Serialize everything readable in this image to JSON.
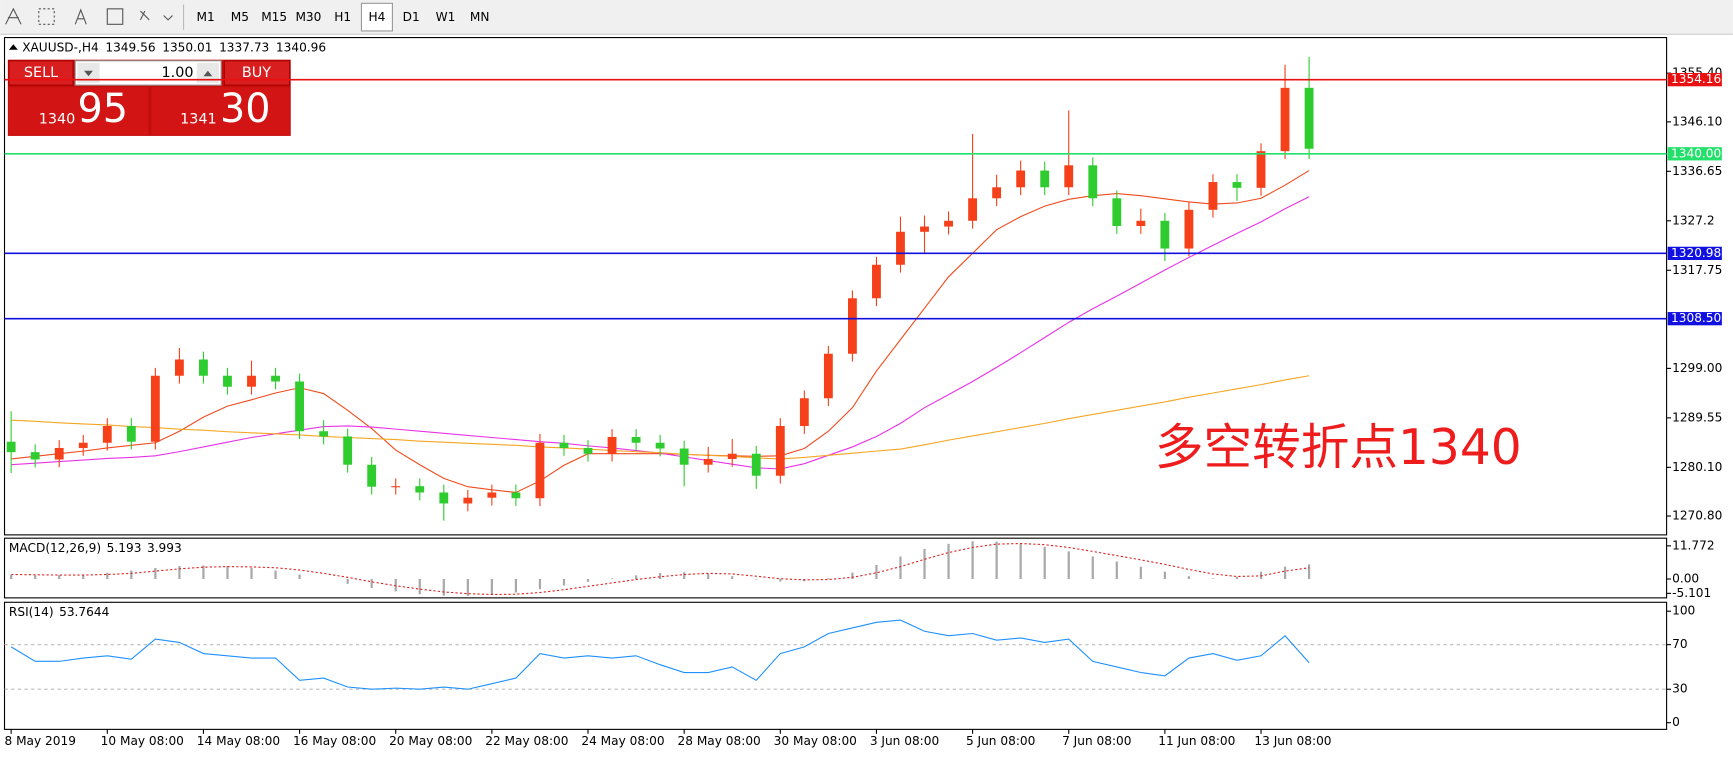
{
  "toolbar": {
    "timeframes": [
      "M1",
      "M5",
      "M15",
      "M30",
      "H1",
      "H4",
      "D1",
      "W1",
      "MN"
    ],
    "active": "H4"
  },
  "trade_panel": {
    "sell": "SELL",
    "buy": "BUY",
    "lot": "1.00",
    "bid": [
      "1340",
      "95"
    ],
    "ask": [
      "1341",
      "30"
    ]
  },
  "chart_data": [
    {
      "type": "candlestick",
      "title": "XAUUSD-,H4",
      "ohlc_display": [
        1349.56,
        1350.01,
        1337.73,
        1340.96
      ],
      "annotation": "多空转折点1340",
      "categories": [
        "8 May 2019",
        null,
        null,
        null,
        "10 May 08:00",
        null,
        null,
        null,
        "14 May 08:00",
        null,
        null,
        null,
        "16 May 08:00",
        null,
        null,
        null,
        "20 May 08:00",
        null,
        null,
        null,
        "22 May 08:00",
        null,
        null,
        null,
        "24 May 08:00",
        null,
        null,
        null,
        "28 May 08:00",
        null,
        null,
        null,
        "30 May 08:00",
        null,
        null,
        null,
        "3 Jun 08:00",
        null,
        null,
        null,
        "5 Jun 08:00",
        null,
        null,
        null,
        "7 Jun 08:00",
        null,
        null,
        null,
        "11 Jun 08:00",
        null,
        null,
        null,
        "13 Jun 08:00",
        null,
        null
      ],
      "open": [
        1285.0,
        1283.0,
        1281.6,
        1283.8,
        1284.8,
        1288.0,
        1285.0,
        1297.6,
        1300.7,
        1297.6,
        1295.5,
        1297.6,
        1296.5,
        1287.0,
        1286.0,
        1280.6,
        1276.4,
        1276.5,
        1275.3,
        1273.2,
        1274.3,
        1275.3,
        1274.2,
        1284.8,
        1283.8,
        1282.7,
        1285.9,
        1284.8,
        1283.7,
        1280.6,
        1281.7,
        1282.7,
        1278.5,
        1288.0,
        1293.3,
        1301.8,
        1312.4,
        1318.8,
        1325.1,
        1326.1,
        1327.2,
        1331.5,
        1333.6,
        1336.8,
        1333.6,
        1337.8,
        1331.5,
        1326.2,
        1327.2,
        1321.9,
        1329.3,
        1334.6,
        1333.5,
        1340.5,
        1352.6
      ],
      "high": [
        1290.8,
        1284.5,
        1285.3,
        1286.3,
        1289.5,
        1289.5,
        1299.1,
        1302.9,
        1302.2,
        1299.1,
        1300.5,
        1299.1,
        1298.0,
        1289.1,
        1287.5,
        1282.1,
        1278.0,
        1278.0,
        1276.8,
        1275.8,
        1276.8,
        1276.8,
        1286.5,
        1286.3,
        1285.3,
        1287.4,
        1287.4,
        1286.3,
        1285.2,
        1284.0,
        1285.5,
        1284.2,
        1289.5,
        1294.8,
        1303.3,
        1313.9,
        1320.3,
        1328.0,
        1328.2,
        1329.0,
        1343.8,
        1336.0,
        1338.7,
        1338.5,
        1348.3,
        1339.3,
        1333.0,
        1329.5,
        1328.7,
        1330.8,
        1336.1,
        1336.1,
        1342.0,
        1357.0,
        1358.5
      ],
      "low": [
        1279.0,
        1280.1,
        1280.1,
        1282.3,
        1283.3,
        1283.5,
        1283.5,
        1296.1,
        1296.1,
        1294.0,
        1294.0,
        1295.0,
        1285.5,
        1284.5,
        1279.1,
        1274.9,
        1274.9,
        1273.8,
        1269.9,
        1271.7,
        1272.8,
        1272.7,
        1272.7,
        1282.3,
        1281.2,
        1281.2,
        1283.3,
        1282.2,
        1276.5,
        1279.1,
        1280.2,
        1276.0,
        1277.0,
        1286.5,
        1291.8,
        1300.3,
        1310.9,
        1317.3,
        1321.0,
        1324.6,
        1325.7,
        1330.0,
        1332.1,
        1332.1,
        1332.1,
        1330.0,
        1324.7,
        1324.7,
        1319.5,
        1320.4,
        1327.8,
        1331.0,
        1332.0,
        1339.0,
        1339.0
      ],
      "close": [
        1283.0,
        1281.6,
        1283.8,
        1284.8,
        1288.0,
        1285.0,
        1297.6,
        1300.7,
        1297.6,
        1295.5,
        1297.6,
        1296.5,
        1287.0,
        1286.0,
        1280.6,
        1276.4,
        1276.5,
        1275.3,
        1273.2,
        1274.3,
        1275.3,
        1274.2,
        1284.8,
        1283.8,
        1282.7,
        1285.9,
        1284.8,
        1283.7,
        1280.6,
        1281.7,
        1282.7,
        1278.5,
        1288.0,
        1293.3,
        1301.8,
        1312.4,
        1318.8,
        1325.1,
        1326.1,
        1327.2,
        1331.5,
        1333.6,
        1336.8,
        1333.6,
        1337.8,
        1331.5,
        1326.2,
        1327.2,
        1321.9,
        1329.3,
        1334.6,
        1333.5,
        1340.5,
        1352.6,
        1340.96
      ],
      "up_color": "#f5401a",
      "down_color": "#2fcc2f",
      "series": [
        {
          "color": "#f04b1e",
          "values": [
            1281.7,
            1282.2,
            1282.7,
            1283.2,
            1283.8,
            1284.3,
            1284.8,
            1287.0,
            1289.7,
            1291.8,
            1293.0,
            1294.3,
            1295.3,
            1294.2,
            1291.0,
            1287.5,
            1283.4,
            1280.6,
            1278.0,
            1276.4,
            1275.8,
            1275.3,
            1277.5,
            1280.5,
            1282.7,
            1282.7,
            1282.7,
            1282.7,
            1282.6,
            1282.4,
            1282.3,
            1282.2,
            1282.3,
            1283.7,
            1287.0,
            1291.5,
            1298.5,
            1304.5,
            1310.5,
            1316.5,
            1321.0,
            1325.5,
            1328.0,
            1330.0,
            1331.3,
            1332.0,
            1332.4,
            1332.0,
            1331.4,
            1330.8,
            1330.4,
            1330.6,
            1331.5,
            1334.0,
            1336.8
          ]
        },
        {
          "color": "#e832e8",
          "values": [
            1280.6,
            1280.9,
            1281.2,
            1281.5,
            1281.8,
            1282.0,
            1282.3,
            1283.1,
            1284.0,
            1284.9,
            1285.8,
            1286.5,
            1287.2,
            1287.9,
            1288.0,
            1287.8,
            1287.4,
            1287.0,
            1286.6,
            1286.2,
            1285.8,
            1285.4,
            1285.0,
            1284.7,
            1284.2,
            1283.8,
            1283.3,
            1282.8,
            1282.1,
            1281.4,
            1280.7,
            1280.0,
            1279.8,
            1280.8,
            1282.4,
            1284.0,
            1286.0,
            1288.5,
            1291.5,
            1294.0,
            1296.5,
            1299.2,
            1302.0,
            1304.9,
            1307.8,
            1310.4,
            1312.8,
            1315.3,
            1317.8,
            1320.2,
            1322.5,
            1324.8,
            1327.0,
            1329.5,
            1331.8
          ]
        },
        {
          "color": "#f5a623",
          "values": [
            1289.1,
            1288.9,
            1288.6,
            1288.4,
            1288.2,
            1287.9,
            1287.7,
            1287.4,
            1287.2,
            1286.9,
            1286.7,
            1286.5,
            1286.3,
            1286.0,
            1285.8,
            1285.6,
            1285.4,
            1285.1,
            1284.9,
            1284.7,
            1284.5,
            1284.3,
            1284.0,
            1283.8,
            1283.6,
            1283.3,
            1283.1,
            1282.9,
            1282.6,
            1282.4,
            1282.2,
            1281.9,
            1281.7,
            1282.0,
            1282.4,
            1282.8,
            1283.2,
            1283.6,
            1284.4,
            1285.3,
            1286.1,
            1286.9,
            1287.7,
            1288.5,
            1289.4,
            1290.2,
            1291.0,
            1291.8,
            1292.6,
            1293.5,
            1294.3,
            1295.1,
            1295.9,
            1296.8,
            1297.6
          ]
        }
      ],
      "levels": [
        {
          "value": 1354.16,
          "color": "#e81010"
        },
        {
          "value": 1340,
          "label": "1340.00",
          "color": "#22e06a"
        },
        {
          "value": 1320.98,
          "color": "#1010e0"
        },
        {
          "value": 1308.5,
          "label": "1308.50",
          "color": "#1010e0"
        }
      ],
      "ylim": [
        1267.2,
        1362.2
      ],
      "yticks": [
        {
          "value": 1355.4,
          "label": "1355.40"
        },
        {
          "value": 1346.1,
          "label": "1346.10"
        },
        1336.65,
        1327.2,
        1317.75,
        {
          "value": 1299,
          "label": "1299.00"
        },
        1289.55,
        {
          "value": 1280.1,
          "label": "1280.10"
        },
        {
          "value": 1270.8,
          "label": "1270.80"
        }
      ]
    },
    {
      "type": "macd",
      "title": "MACD(12,26,9)",
      "histogram": {
        "color": "#a8a8a8",
        "values": [
          1.4,
          1.3,
          1.4,
          1.6,
          2.2,
          3.0,
          3.9,
          4.6,
          4.8,
          4.6,
          4.0,
          3.0,
          1.6,
          0.0,
          -1.7,
          -3.2,
          -4.4,
          -5.4,
          -5.9,
          -6.0,
          -5.6,
          -4.8,
          -3.6,
          -2.3,
          -1.0,
          0.2,
          1.3,
          2.1,
          2.4,
          2.0,
          1.0,
          -0.2,
          -0.9,
          -0.8,
          0.3,
          2.3,
          5.0,
          8.0,
          10.7,
          12.5,
          13.4,
          13.3,
          12.6,
          11.4,
          9.8,
          8.0,
          6.2,
          4.4,
          2.6,
          1.0,
          0.2,
          0.8,
          2.6,
          4.4,
          5.193
        ]
      },
      "signal": {
        "color": "#e02020",
        "values": [
          1.6,
          1.5,
          1.4,
          1.4,
          1.6,
          2.0,
          2.8,
          3.6,
          4.2,
          4.4,
          4.3,
          4.0,
          3.2,
          2.0,
          0.6,
          -1.0,
          -2.4,
          -3.6,
          -4.6,
          -5.2,
          -5.5,
          -5.4,
          -4.8,
          -3.8,
          -2.6,
          -1.4,
          -0.2,
          0.8,
          1.6,
          2.0,
          1.8,
          1.0,
          0.1,
          -0.3,
          -0.2,
          0.6,
          2.2,
          4.4,
          7.0,
          9.4,
          11.2,
          12.4,
          12.6,
          12.2,
          11.2,
          9.8,
          8.3,
          6.8,
          5.2,
          3.4,
          1.8,
          0.9,
          1.1,
          2.8,
          3.993
        ]
      },
      "ylim": [
        -6.7,
        14.5
      ],
      "yticks": [
        11.772,
        {
          "value": 0,
          "label": "0.00"
        },
        -5.101
      ]
    },
    {
      "type": "line",
      "title": "RSI(14)",
      "series": [
        {
          "color": "#1e90ff",
          "values": [
            68,
            55,
            55,
            58,
            60,
            57,
            75,
            72,
            62,
            60,
            58,
            58,
            38,
            40,
            32,
            30,
            31,
            30,
            32,
            30,
            35,
            40,
            62,
            58,
            60,
            58,
            60,
            52,
            45,
            45,
            50,
            38,
            62,
            68,
            80,
            85,
            90,
            92,
            82,
            78,
            80,
            74,
            76,
            72,
            75,
            55,
            50,
            45,
            42,
            58,
            62,
            56,
            60,
            78,
            53.7644
          ]
        }
      ],
      "levels": [
        70,
        30
      ],
      "ylim": [
        -6,
        108
      ],
      "yticks": [
        100,
        70,
        30,
        0
      ]
    }
  ]
}
